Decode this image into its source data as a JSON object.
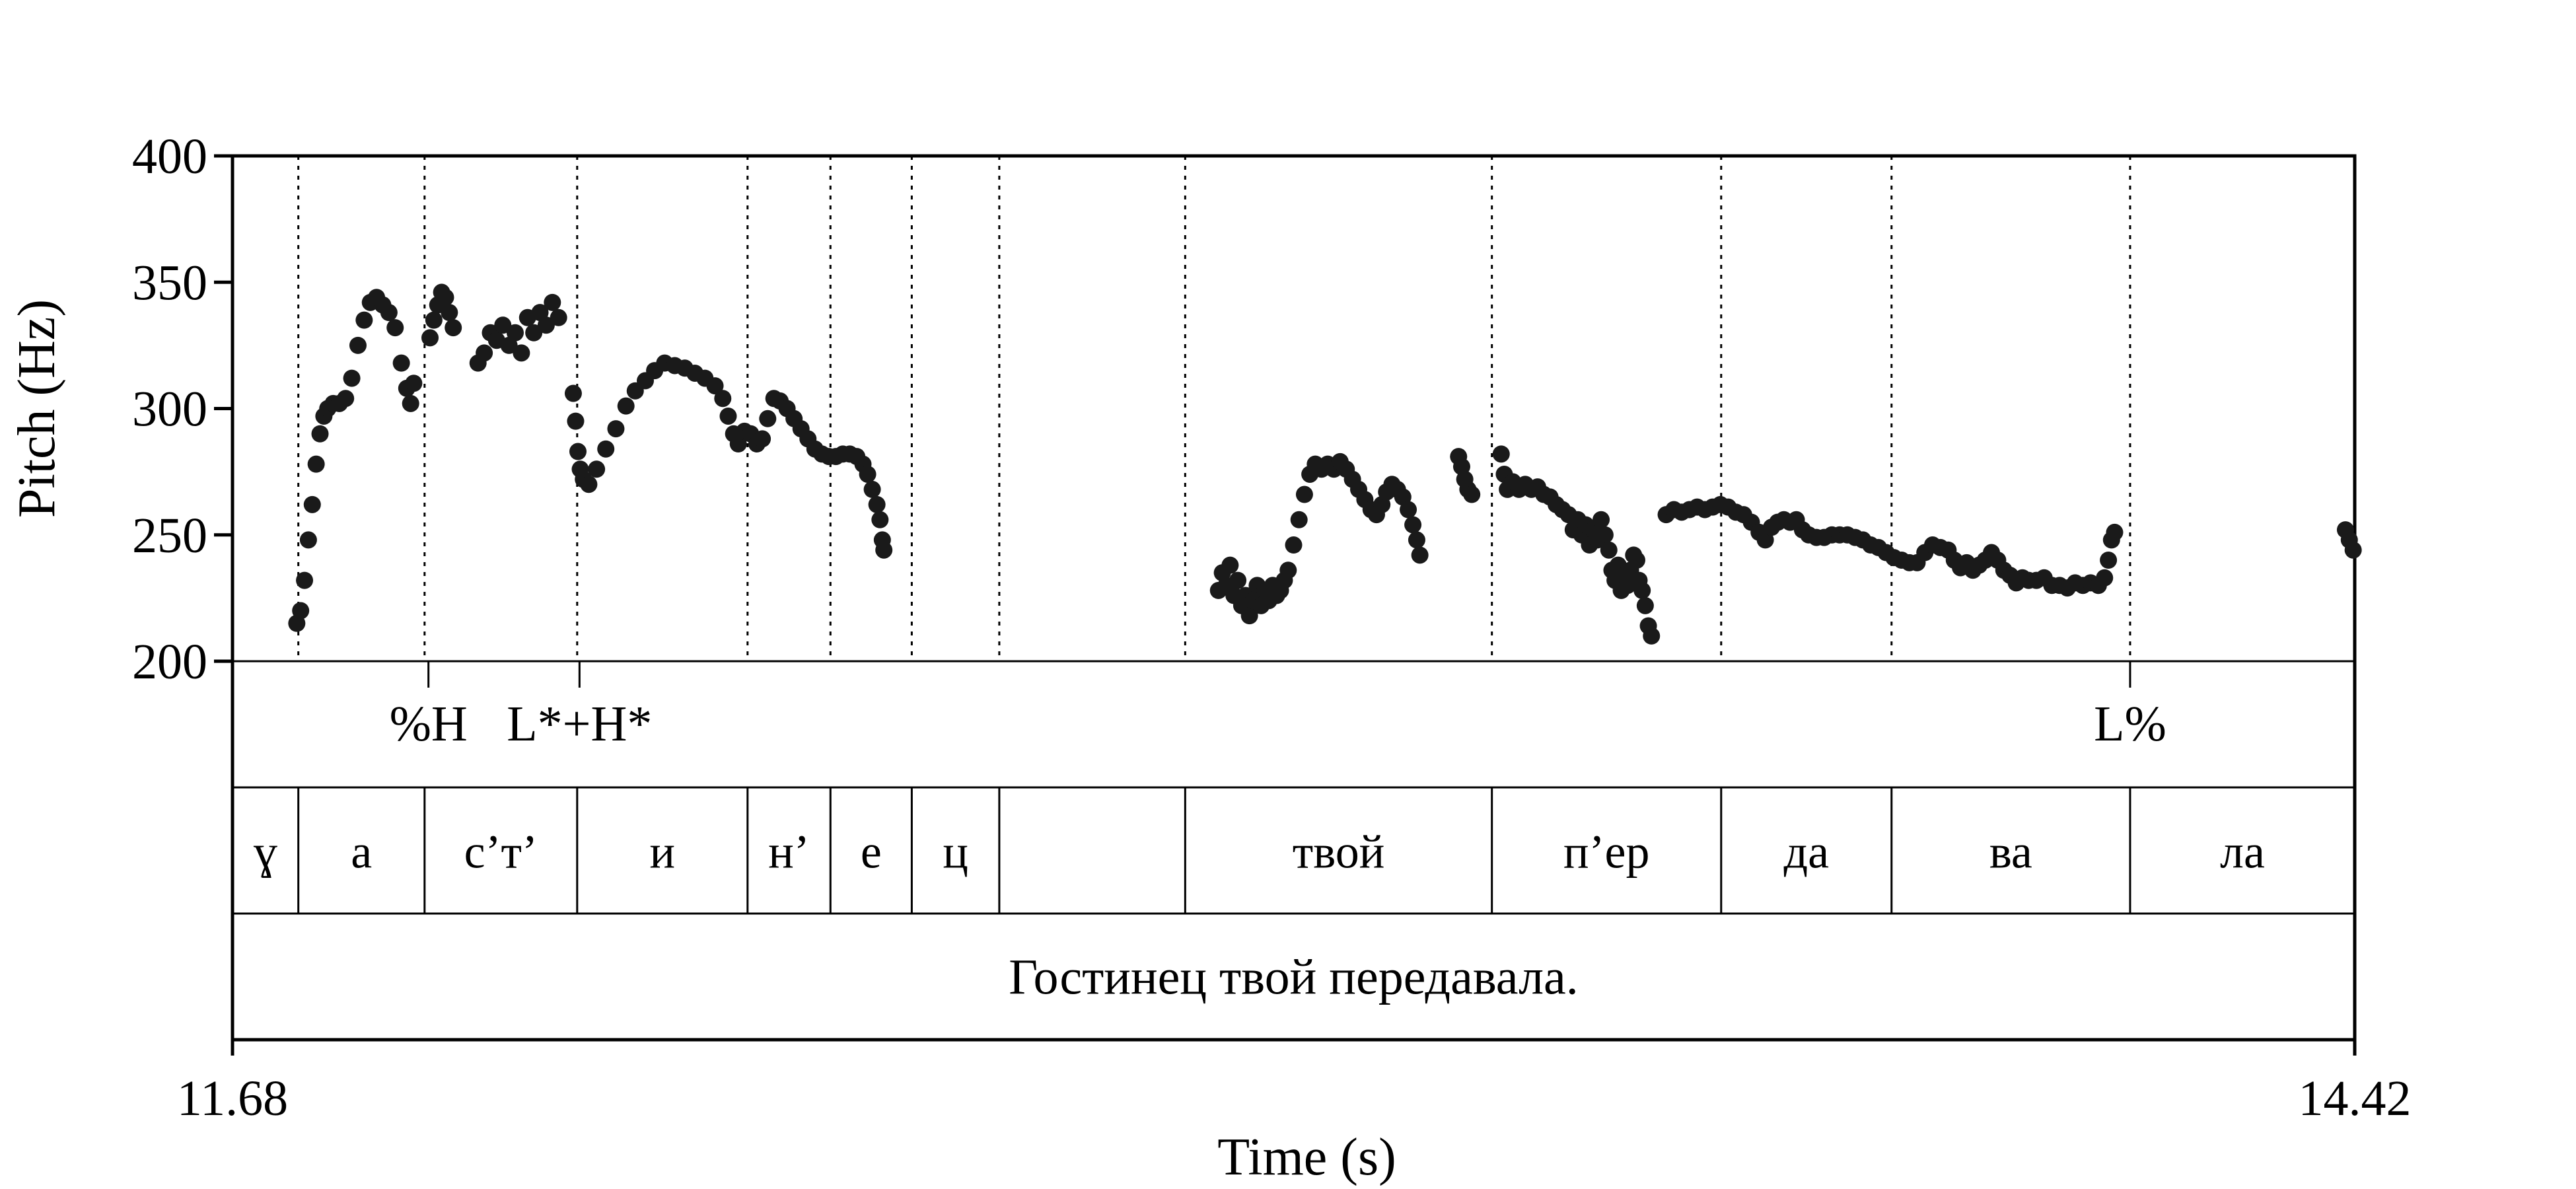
{
  "chart_data": {
    "type": "scatter",
    "title": "",
    "xlabel": "Time (s)",
    "ylabel": "Pitch (Hz)",
    "xlim": [
      11.68,
      14.42
    ],
    "ylim": [
      200,
      400
    ],
    "x_tick_labels": [
      "11.68",
      "14.42"
    ],
    "y_tick_labels": [
      "200",
      "250",
      "300",
      "350",
      "400"
    ],
    "y_ticks": [
      200,
      250,
      300,
      350,
      400
    ],
    "series": [
      {
        "points": [
          [
            11.763,
            215
          ],
          [
            11.768,
            220
          ],
          [
            11.773,
            232
          ],
          [
            11.778,
            248
          ],
          [
            11.783,
            262
          ],
          [
            11.788,
            278
          ],
          [
            11.793,
            290
          ],
          [
            11.798,
            297
          ],
          [
            11.803,
            300
          ],
          [
            11.81,
            302
          ],
          [
            11.818,
            302
          ],
          [
            11.826,
            304
          ],
          [
            11.834,
            312
          ],
          [
            11.842,
            325
          ],
          [
            11.85,
            335
          ],
          [
            11.858,
            342
          ],
          [
            11.866,
            344
          ],
          [
            11.874,
            341
          ],
          [
            11.882,
            338
          ],
          [
            11.89,
            332
          ],
          [
            11.898,
            318
          ],
          [
            11.905,
            308
          ],
          [
            11.91,
            302
          ],
          [
            11.914,
            310
          ],
          [
            11.935,
            328
          ],
          [
            11.94,
            335
          ],
          [
            11.945,
            341
          ],
          [
            11.95,
            346
          ],
          [
            11.955,
            344
          ],
          [
            11.96,
            338
          ],
          [
            11.965,
            332
          ],
          [
            11.997,
            318
          ],
          [
            12.005,
            322
          ],
          [
            12.013,
            330
          ],
          [
            12.021,
            327
          ],
          [
            12.029,
            333
          ],
          [
            12.037,
            325
          ],
          [
            12.045,
            330
          ],
          [
            12.053,
            322
          ],
          [
            12.061,
            336
          ],
          [
            12.069,
            330
          ],
          [
            12.077,
            338
          ],
          [
            12.085,
            333
          ],
          [
            12.093,
            342
          ],
          [
            12.101,
            336
          ],
          [
            12.12,
            306
          ],
          [
            12.123,
            295
          ],
          [
            12.126,
            283
          ],
          [
            12.129,
            276
          ],
          [
            12.133,
            272
          ],
          [
            12.14,
            270
          ],
          [
            12.15,
            276
          ],
          [
            12.162,
            284
          ],
          [
            12.175,
            292
          ],
          [
            12.188,
            301
          ],
          [
            12.2,
            307
          ],
          [
            12.213,
            311
          ],
          [
            12.225,
            315
          ],
          [
            12.238,
            318
          ],
          [
            12.251,
            317
          ],
          [
            12.264,
            316
          ],
          [
            12.277,
            314
          ],
          [
            12.29,
            312
          ],
          [
            12.303,
            309
          ],
          [
            12.313,
            304
          ],
          [
            12.32,
            297
          ],
          [
            12.327,
            290
          ],
          [
            12.333,
            286
          ],
          [
            12.341,
            291
          ],
          [
            12.349,
            290
          ],
          [
            12.357,
            286
          ],
          [
            12.364,
            288
          ],
          [
            12.371,
            296
          ],
          [
            12.379,
            304
          ],
          [
            12.387,
            303
          ],
          [
            12.396,
            300
          ],
          [
            12.405,
            296
          ],
          [
            12.414,
            292
          ],
          [
            12.423,
            288
          ],
          [
            12.432,
            284
          ],
          [
            12.441,
            282
          ],
          [
            12.45,
            281
          ],
          [
            12.459,
            281
          ],
          [
            12.468,
            282
          ],
          [
            12.477,
            282
          ],
          [
            12.486,
            281
          ],
          [
            12.494,
            278
          ],
          [
            12.5,
            274
          ],
          [
            12.506,
            268
          ],
          [
            12.512,
            262
          ],
          [
            12.516,
            256
          ],
          [
            12.519,
            248
          ],
          [
            12.521,
            244
          ],
          [
            12.953,
            228
          ],
          [
            12.958,
            235
          ],
          [
            12.963,
            230
          ],
          [
            12.968,
            238
          ],
          [
            12.973,
            226
          ],
          [
            12.978,
            232
          ],
          [
            12.983,
            222
          ],
          [
            12.988,
            226
          ],
          [
            12.993,
            218
          ],
          [
            12.998,
            224
          ],
          [
            13.003,
            230
          ],
          [
            13.008,
            222
          ],
          [
            13.013,
            228
          ],
          [
            13.018,
            224
          ],
          [
            13.023,
            230
          ],
          [
            13.028,
            226
          ],
          [
            13.033,
            228
          ],
          [
            13.038,
            232
          ],
          [
            13.043,
            236
          ],
          [
            13.05,
            246
          ],
          [
            13.057,
            256
          ],
          [
            13.064,
            266
          ],
          [
            13.071,
            274
          ],
          [
            13.078,
            278
          ],
          [
            13.086,
            276
          ],
          [
            13.094,
            278
          ],
          [
            13.102,
            276
          ],
          [
            13.11,
            279
          ],
          [
            13.118,
            276
          ],
          [
            13.126,
            272
          ],
          [
            13.134,
            268
          ],
          [
            13.142,
            264
          ],
          [
            13.15,
            260
          ],
          [
            13.157,
            258
          ],
          [
            13.164,
            262
          ],
          [
            13.17,
            267
          ],
          [
            13.177,
            270
          ],
          [
            13.184,
            268
          ],
          [
            13.191,
            265
          ],
          [
            13.198,
            260
          ],
          [
            13.204,
            254
          ],
          [
            13.209,
            248
          ],
          [
            13.213,
            242
          ],
          [
            13.263,
            281
          ],
          [
            13.267,
            277
          ],
          [
            13.271,
            272
          ],
          [
            13.275,
            268
          ],
          [
            13.28,
            266
          ],
          [
            13.318,
            282
          ],
          [
            13.322,
            274
          ],
          [
            13.326,
            268
          ],
          [
            13.333,
            271
          ],
          [
            13.341,
            268
          ],
          [
            13.349,
            270
          ],
          [
            13.357,
            268
          ],
          [
            13.365,
            269
          ],
          [
            13.373,
            266
          ],
          [
            13.381,
            265
          ],
          [
            13.389,
            262
          ],
          [
            13.397,
            260
          ],
          [
            13.405,
            258
          ],
          [
            13.411,
            252
          ],
          [
            13.417,
            256
          ],
          [
            13.422,
            250
          ],
          [
            13.427,
            254
          ],
          [
            13.432,
            246
          ],
          [
            13.437,
            252
          ],
          [
            13.442,
            248
          ],
          [
            13.447,
            256
          ],
          [
            13.452,
            250
          ],
          [
            13.457,
            244
          ],
          [
            13.461,
            236
          ],
          [
            13.465,
            232
          ],
          [
            13.469,
            238
          ],
          [
            13.473,
            228
          ],
          [
            13.477,
            234
          ],
          [
            13.481,
            230
          ],
          [
            13.485,
            236
          ],
          [
            13.489,
            242
          ],
          [
            13.493,
            240
          ],
          [
            13.496,
            232
          ],
          [
            13.5,
            228
          ],
          [
            13.504,
            222
          ],
          [
            13.508,
            214
          ],
          [
            13.512,
            210
          ],
          [
            13.531,
            258
          ],
          [
            13.541,
            260
          ],
          [
            13.551,
            259
          ],
          [
            13.561,
            260
          ],
          [
            13.571,
            261
          ],
          [
            13.581,
            260
          ],
          [
            13.591,
            261
          ],
          [
            13.601,
            262
          ],
          [
            13.611,
            261
          ],
          [
            13.621,
            259
          ],
          [
            13.631,
            258
          ],
          [
            13.641,
            255
          ],
          [
            13.651,
            251
          ],
          [
            13.659,
            248
          ],
          [
            13.667,
            253
          ],
          [
            13.675,
            255
          ],
          [
            13.683,
            256
          ],
          [
            13.691,
            255
          ],
          [
            13.699,
            256
          ],
          [
            13.707,
            252
          ],
          [
            13.715,
            250
          ],
          [
            13.725,
            249
          ],
          [
            13.735,
            249
          ],
          [
            13.745,
            250
          ],
          [
            13.755,
            250
          ],
          [
            13.765,
            250
          ],
          [
            13.775,
            249
          ],
          [
            13.785,
            248
          ],
          [
            13.795,
            246
          ],
          [
            13.805,
            245
          ],
          [
            13.815,
            243
          ],
          [
            13.825,
            241
          ],
          [
            13.835,
            240
          ],
          [
            13.845,
            239
          ],
          [
            13.855,
            239
          ],
          [
            13.865,
            243
          ],
          [
            13.875,
            246
          ],
          [
            13.885,
            245
          ],
          [
            13.895,
            244
          ],
          [
            13.903,
            240
          ],
          [
            13.911,
            237
          ],
          [
            13.919,
            239
          ],
          [
            13.927,
            236
          ],
          [
            13.935,
            238
          ],
          [
            13.943,
            240
          ],
          [
            13.951,
            243
          ],
          [
            13.959,
            240
          ],
          [
            13.967,
            236
          ],
          [
            13.975,
            234
          ],
          [
            13.983,
            231
          ],
          [
            13.991,
            233
          ],
          [
            13.999,
            232
          ],
          [
            14.009,
            232
          ],
          [
            14.019,
            233
          ],
          [
            14.029,
            230
          ],
          [
            14.039,
            230
          ],
          [
            14.049,
            229
          ],
          [
            14.059,
            231
          ],
          [
            14.069,
            230
          ],
          [
            14.079,
            231
          ],
          [
            14.089,
            230
          ],
          [
            14.097,
            233
          ],
          [
            14.102,
            240
          ],
          [
            14.106,
            248
          ],
          [
            14.11,
            251
          ],
          [
            14.408,
            252
          ],
          [
            14.413,
            248
          ],
          [
            14.418,
            244
          ]
        ]
      }
    ],
    "tiers": [
      {
        "type": "point",
        "labels": [
          {
            "time": 11.933,
            "text": "%H"
          },
          {
            "time": 12.128,
            "text": "L*+H*"
          },
          {
            "time": 14.13,
            "text": "L%"
          }
        ]
      },
      {
        "type": "interval",
        "boundaries": [
          11.68,
          11.765,
          11.928,
          12.125,
          12.345,
          12.452,
          12.557,
          12.67,
          12.91,
          13.306,
          13.602,
          13.822,
          14.13,
          14.42
        ],
        "labels": [
          "ɣ",
          "а",
          "с’т’",
          "и",
          "н’",
          "е",
          "ц",
          "",
          "твой",
          "п’ер",
          "да",
          "ва",
          "ла"
        ]
      },
      {
        "type": "interval",
        "boundaries": [
          11.68,
          14.42
        ],
        "labels": [
          "Гостинец твой передавала."
        ]
      }
    ],
    "grid": false,
    "legend": "none"
  }
}
